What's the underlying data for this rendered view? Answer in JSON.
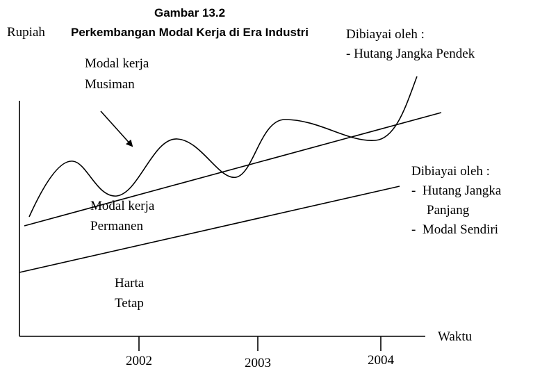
{
  "title": {
    "number": "Gambar 13.2",
    "text": "Perkembangan Modal Kerja di Era Industri"
  },
  "axes": {
    "y_label": "Rupiah",
    "x_label": "Waktu",
    "x_ticks": [
      "2002",
      "2003",
      "2004"
    ]
  },
  "labels": {
    "seasonal": [
      "Modal kerja",
      "Musiman"
    ],
    "short_term_financing": [
      "Dibiayai oleh :",
      "- Hutang Jangka Pendek"
    ],
    "permanent": [
      "Modal kerja",
      "Permanen"
    ],
    "long_term_financing": [
      "Dibiayai oleh :",
      "-  Hutang Jangka",
      "Panjang",
      "-  Modal Sendiri"
    ],
    "fixed_assets": [
      "Harta",
      "Tetap"
    ]
  }
}
